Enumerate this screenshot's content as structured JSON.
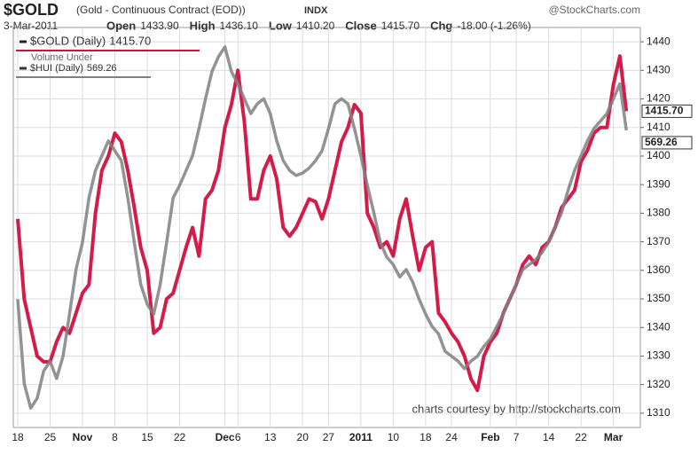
{
  "chart_data": {
    "type": "line",
    "title": "$GOLD",
    "subtitle": "(Gold - Continuous Contract (EOD))",
    "exchange": "INDX",
    "source": "@StockCharts.com",
    "date": "3-Mar-2011",
    "stats": [
      {
        "label": "Open",
        "value": "1433.90"
      },
      {
        "label": "High",
        "value": "1436.10"
      },
      {
        "label": "Low",
        "value": "1410.20"
      },
      {
        "label": "Close",
        "value": "1415.70"
      },
      {
        "label": "Chg",
        "value": "-18.00 (-1.26%)"
      }
    ],
    "legend_extra": "Volume Under",
    "annotation": "charts courtesy by http://stockcharts.com",
    "categories": [
      "18",
      null,
      null,
      null,
      null,
      "25",
      null,
      null,
      null,
      null,
      "Nov",
      null,
      null,
      null,
      null,
      "8",
      null,
      null,
      null,
      null,
      "15",
      null,
      null,
      null,
      null,
      "22",
      null,
      null,
      null,
      null,
      null,
      null,
      "Dec",
      null,
      "6",
      null,
      null,
      null,
      null,
      "13",
      null,
      null,
      null,
      null,
      "20",
      null,
      null,
      null,
      "27",
      null,
      null,
      null,
      null,
      "2011",
      null,
      null,
      null,
      null,
      "10",
      null,
      null,
      null,
      null,
      "18",
      null,
      null,
      null,
      "24",
      null,
      null,
      null,
      null,
      null,
      "Feb",
      null,
      null,
      null,
      "7",
      null,
      null,
      null,
      null,
      "14",
      null,
      null,
      null,
      null,
      "22",
      null,
      null,
      null,
      null,
      "Mar",
      null,
      null
    ],
    "series": [
      {
        "name": "$GOLD (Daily)",
        "last_label": "1415.70",
        "color": "#d21040",
        "axis": "y",
        "values": [
          1378,
          1350,
          1340,
          1330,
          1328,
          1328,
          1335,
          1340,
          1338,
          1345,
          1352,
          1355,
          1380,
          1395,
          1400,
          1408,
          1405,
          1395,
          1382,
          1368,
          1360,
          1338,
          1340,
          1350,
          1352,
          1360,
          1368,
          1375,
          1365,
          1385,
          1388,
          1395,
          1410,
          1418,
          1430,
          1412,
          1385,
          1385,
          1395,
          1400,
          1392,
          1375,
          1372,
          1375,
          1380,
          1385,
          1384,
          1378,
          1385,
          1395,
          1405,
          1410,
          1418,
          1415,
          1380,
          1375,
          1368,
          1370,
          1365,
          1378,
          1385,
          1372,
          1360,
          1368,
          1370,
          1345,
          1342,
          1338,
          1335,
          1330,
          1322,
          1318,
          1330,
          1335,
          1338,
          1345,
          1350,
          1355,
          1362,
          1365,
          1362,
          1368,
          1370,
          1375,
          1382,
          1385,
          1388,
          1398,
          1402,
          1408,
          1410,
          1410,
          1425,
          1435,
          1415.7
        ]
      },
      {
        "name": "$HUI (Daily)",
        "last_label": "569.26",
        "color": "#808080",
        "axis": "y2",
        "values": [
          501,
          467,
          457,
          461,
          472,
          476,
          469,
          478,
          495,
          513,
          524,
          542,
          553,
          559,
          565,
          561,
          557,
          542,
          524,
          507,
          499,
          495,
          507,
          524,
          542,
          547,
          553,
          559,
          570,
          582,
          593,
          599,
          603,
          593,
          588,
          582,
          576,
          580,
          582,
          576,
          565,
          557,
          553,
          551,
          552,
          554,
          557,
          561,
          570,
          580,
          582,
          580,
          570,
          559,
          547,
          536,
          524,
          518,
          515,
          510,
          513,
          508,
          501,
          495,
          490,
          487,
          480,
          478,
          476,
          473,
          476,
          478,
          482,
          485,
          490,
          495,
          501,
          507,
          513,
          515,
          517,
          520,
          524,
          530,
          536,
          545,
          553,
          559,
          565,
          570,
          573,
          576,
          582,
          588,
          569.26
        ]
      }
    ],
    "ylim": [
      1305,
      1445
    ],
    "yticks": [
      1310,
      1320,
      1330,
      1340,
      1350,
      1360,
      1370,
      1380,
      1390,
      1400,
      1410,
      1420,
      1430,
      1440
    ],
    "y2lim": [
      449.2,
      610.8
    ],
    "grid": true
  }
}
